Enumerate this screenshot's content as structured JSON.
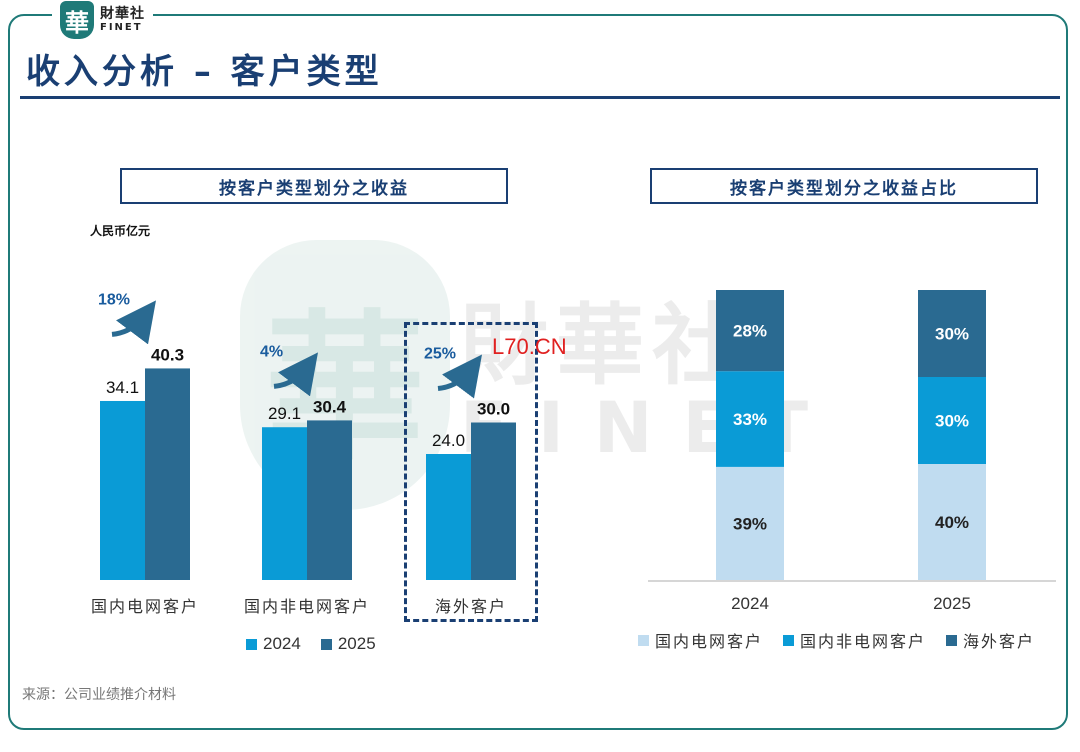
{
  "brand": {
    "seal_char": "華",
    "name_cn": "財華社",
    "name_en": "FINET"
  },
  "page_title": "收入分析 – 客户类型",
  "watermark": {
    "seal_char": "華",
    "cn": "財華社",
    "en": "FINET",
    "site": "L70.CN"
  },
  "source_note": "来源：公司业绩推介材料",
  "colors": {
    "accent_navy": "#1a3f73",
    "frame_teal": "#1f7a78",
    "y2024": "#0a9bd6",
    "y2025": "#2a6a91",
    "domestic_grid": "#c0dcf0",
    "domestic_non_grid": "#0a9bd6",
    "overseas": "#2a6a91"
  },
  "chart_data": [
    {
      "type": "bar",
      "title": "按客户类型划分之收益",
      "ylabel": "人民币亿元",
      "categories": [
        "国内电网客户",
        "国内非电网客户",
        "海外客户"
      ],
      "series": [
        {
          "name": "2024",
          "values": [
            34.1,
            29.1,
            24.0
          ]
        },
        {
          "name": "2025",
          "values": [
            40.3,
            30.4,
            30.0
          ]
        }
      ],
      "growth_labels": [
        "18%",
        "4%",
        "25%"
      ],
      "highlighted_category": "海外客户",
      "legend": "bottom"
    },
    {
      "type": "bar",
      "stacked": true,
      "title": "按客户类型划分之收益占比",
      "categories": [
        "2024",
        "2025"
      ],
      "series": [
        {
          "name": "国内电网客户",
          "values": [
            39,
            40
          ],
          "labels": [
            "39%",
            "40%"
          ]
        },
        {
          "name": "国内非电网客户",
          "values": [
            33,
            30
          ],
          "labels": [
            "33%",
            "30%"
          ]
        },
        {
          "name": "海外客户",
          "values": [
            28,
            30
          ],
          "labels": [
            "28%",
            "30%"
          ]
        }
      ],
      "ylim": [
        0,
        100
      ],
      "legend": "bottom"
    }
  ]
}
